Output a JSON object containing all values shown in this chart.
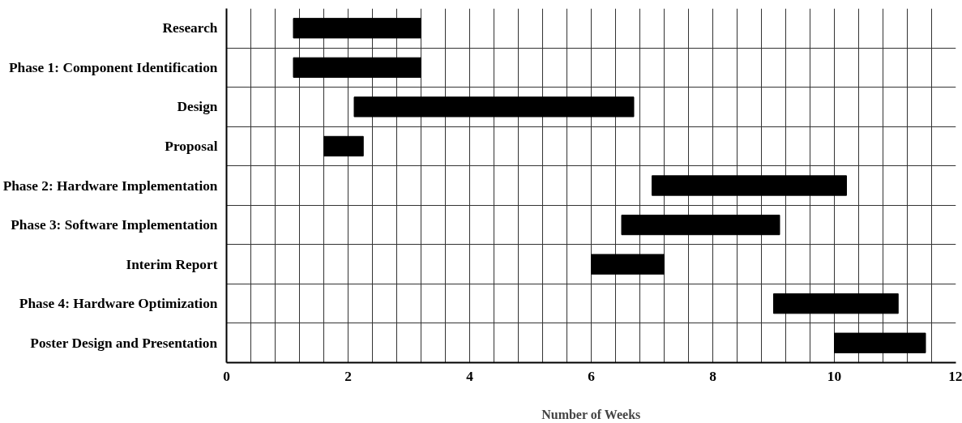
{
  "chart_data": {
    "type": "bar",
    "orientation": "horizontal",
    "xlabel": "Number of Weeks",
    "categories": [
      "Research",
      "Phase 1: Component Identification",
      "Design",
      "Proposal",
      "Phase 2: Hardware Implementation",
      "Phase 3: Software Implementation",
      "Interim Report",
      "Phase 4: Hardware Optimization",
      "Poster Design and Presentation"
    ],
    "base": [
      1.1,
      1.1,
      2.1,
      1.6,
      7.0,
      6.5,
      6.0,
      9.0,
      10.0
    ],
    "values": [
      2.1,
      2.1,
      4.6,
      0.65,
      3.2,
      2.6,
      1.2,
      2.05,
      1.5
    ],
    "color": "#000000",
    "xlim": [
      0,
      12
    ],
    "xticks": [
      0,
      {
        "value": 0.4,
        "label": null
      },
      {
        "value": 0.8,
        "label": null
      },
      {
        "value": 1.2,
        "label": null
      },
      {
        "value": 1.6,
        "label": null
      },
      2,
      {
        "value": 2.4,
        "label": null
      },
      {
        "value": 2.8,
        "label": null
      },
      {
        "value": 3.2,
        "label": null
      },
      {
        "value": 3.6,
        "label": null
      },
      4,
      {
        "value": 4.4,
        "label": null
      },
      {
        "value": 4.8,
        "label": null
      },
      {
        "value": 5.2,
        "label": null
      },
      {
        "value": 5.6,
        "label": null
      },
      6,
      {
        "value": 6.4,
        "label": null
      },
      {
        "value": 6.8,
        "label": null
      },
      {
        "value": 7.2,
        "label": null
      },
      {
        "value": 7.6,
        "label": null
      },
      8,
      {
        "value": 8.4,
        "label": null
      },
      {
        "value": 8.8,
        "label": null
      },
      {
        "value": 9.2,
        "label": null
      },
      {
        "value": 9.6,
        "label": null
      },
      10,
      {
        "value": 10.4,
        "label": null
      },
      {
        "value": 10.8,
        "label": null
      },
      {
        "value": 11.2,
        "label": null
      },
      {
        "value": 11.6,
        "label": null
      },
      12
    ],
    "grid": true
  }
}
